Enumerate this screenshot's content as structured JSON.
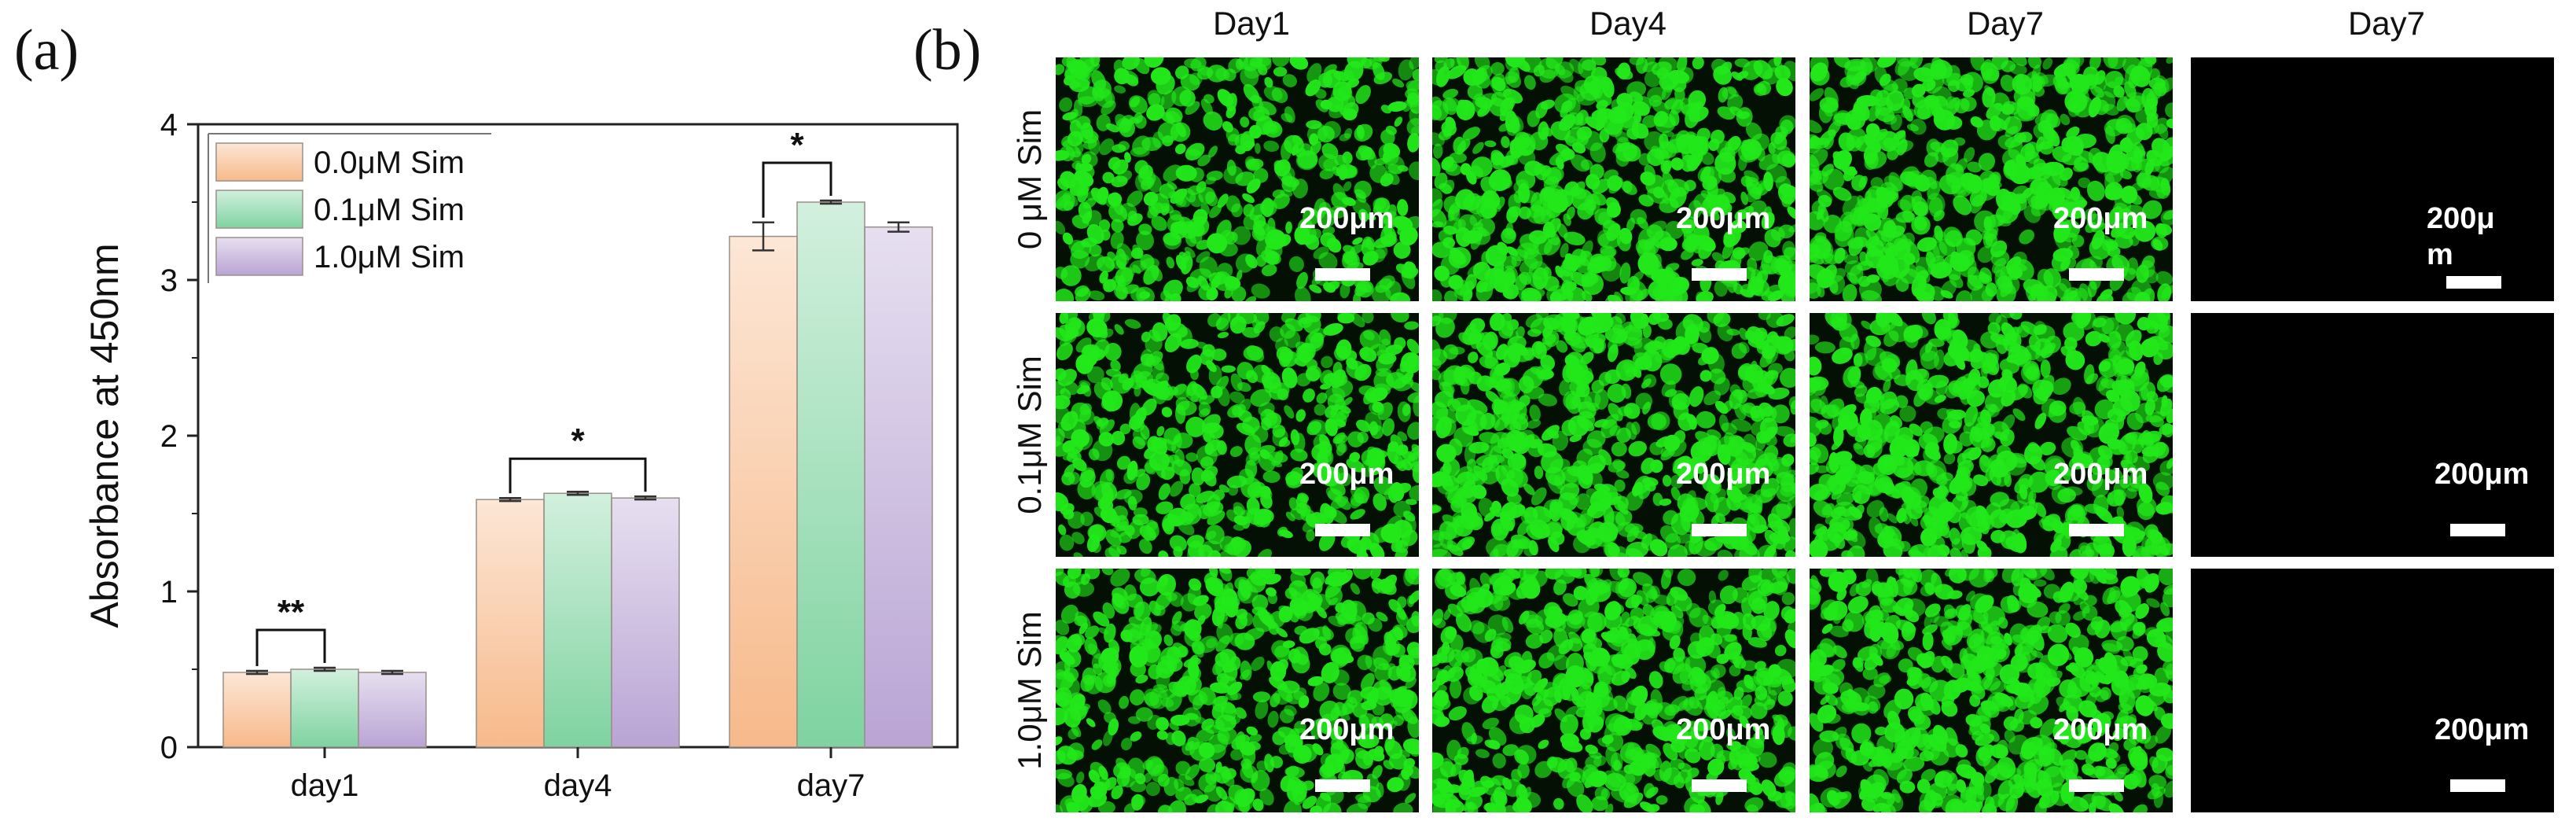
{
  "panel_a": {
    "letter": "(a)"
  },
  "panel_b": {
    "letter": "(b)",
    "columns": [
      "Day1",
      "Day4",
      "Day7",
      "Day7"
    ],
    "rows": [
      "0 μM Sim",
      "0.1μM Sim",
      "1.0μM Sim"
    ],
    "scale_label": "200μm",
    "scale_label_wrapped": [
      "200μ",
      "m"
    ],
    "colors": {
      "live_stain": "#22e81a",
      "background": "#000000"
    }
  },
  "chart_data": {
    "type": "bar",
    "title": "",
    "xlabel": "",
    "ylabel": "Absorbance at 450nm",
    "categories": [
      "day1",
      "day4",
      "day7"
    ],
    "ylim": [
      0,
      4
    ],
    "yticks": [
      "0",
      "1",
      "2",
      "3",
      "4"
    ],
    "series": [
      {
        "name": "0.0μM Sim",
        "color": "#f7b98a",
        "values": [
          0.48,
          1.59,
          3.28
        ],
        "errors": [
          0.01,
          0.01,
          0.09
        ]
      },
      {
        "name": "0.1μM Sim",
        "color": "#7fd3a0",
        "values": [
          0.5,
          1.63,
          3.5
        ],
        "errors": [
          0.01,
          0.01,
          0.01
        ]
      },
      {
        "name": "1.0μM Sim",
        "color": "#b9a4d4",
        "values": [
          0.48,
          1.6,
          3.34
        ],
        "errors": [
          0.01,
          0.01,
          0.03
        ]
      }
    ],
    "significance": [
      {
        "category": "day1",
        "from": "0.0μM Sim",
        "to": "0.1μM Sim",
        "label": "**"
      },
      {
        "category": "day4",
        "from": "0.0μM Sim",
        "to": "1.0μM Sim",
        "label": "*"
      },
      {
        "category": "day7",
        "from": "0.0μM Sim",
        "to": "0.1μM Sim",
        "label": "*"
      }
    ],
    "legend_position": "top-left"
  }
}
